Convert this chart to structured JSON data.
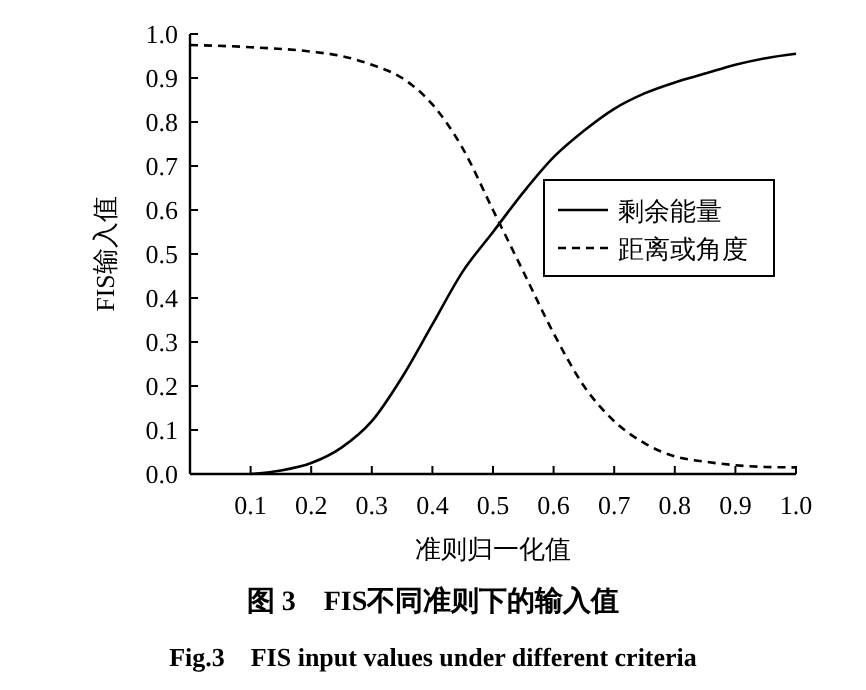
{
  "chart_data": {
    "type": "line",
    "title": "图 3　FIS不同准则下的输入值",
    "subtitle": "Fig.3　FIS input values under different criteria",
    "xlabel": "准则归一化值",
    "ylabel": "FIS输入值",
    "xlim": [
      0,
      1
    ],
    "ylim": [
      0,
      1
    ],
    "xticks": [
      0.1,
      0.2,
      0.3,
      0.4,
      0.5,
      0.6,
      0.7,
      0.8,
      0.9,
      {
        "value": 1,
        "label": "1.0"
      }
    ],
    "yticks": [
      {
        "value": 0,
        "label": "0.0"
      },
      0.1,
      0.2,
      0.3,
      0.4,
      0.5,
      0.6,
      0.7,
      0.8,
      0.9,
      {
        "value": 1,
        "label": "1.0"
      }
    ],
    "grid": false,
    "legend": "right",
    "marker": "none",
    "series": [
      {
        "name": "剩余能量",
        "color": "#000000",
        "line_style": "solid",
        "x": [
          0.1,
          0.15,
          0.2,
          0.25,
          0.3,
          0.35,
          0.4,
          0.45,
          0.5,
          0.55,
          0.6,
          0.65,
          0.7,
          0.75,
          0.8,
          0.85,
          0.9,
          0.95,
          1.0
        ],
        "values": [
          0,
          0.008,
          0.025,
          0.06,
          0.12,
          0.22,
          0.34,
          0.46,
          0.55,
          0.64,
          0.72,
          0.78,
          0.83,
          0.865,
          0.89,
          0.91,
          0.93,
          0.945,
          0.955
        ]
      },
      {
        "name": "距离或角度",
        "color": "#000000",
        "line_style": "dashed",
        "x": [
          0,
          0.1,
          0.2,
          0.25,
          0.3,
          0.35,
          0.4,
          0.45,
          0.5,
          0.55,
          0.6,
          0.65,
          0.7,
          0.75,
          0.8,
          0.85,
          0.9,
          0.95,
          1.0
        ],
        "values": [
          0.975,
          0.97,
          0.96,
          0.95,
          0.93,
          0.9,
          0.84,
          0.74,
          0.6,
          0.46,
          0.32,
          0.2,
          0.12,
          0.07,
          0.04,
          0.028,
          0.02,
          0.016,
          0.015
        ]
      }
    ]
  }
}
